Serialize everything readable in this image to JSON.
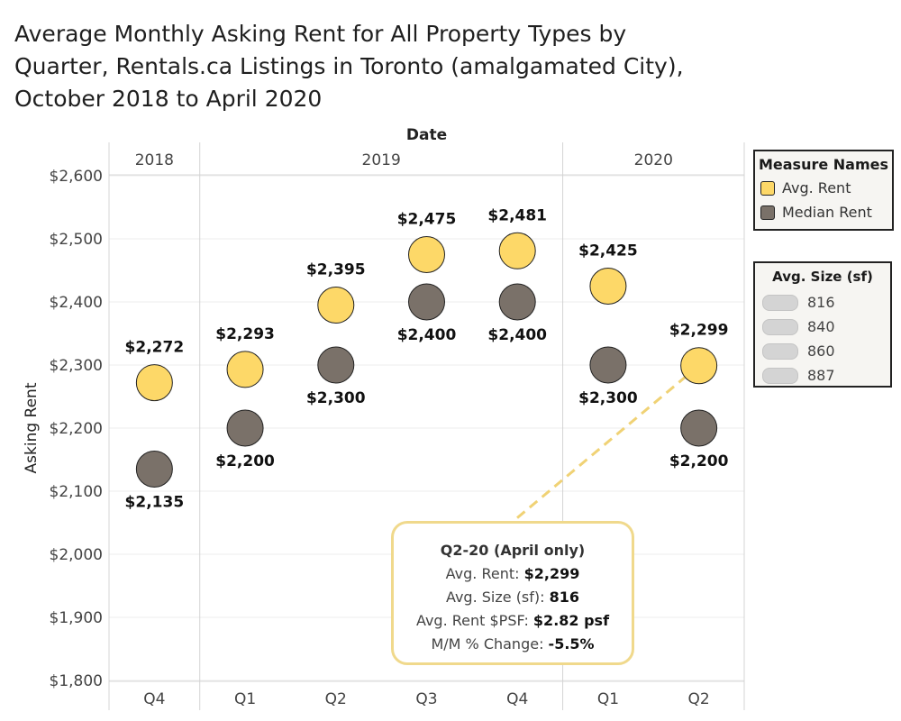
{
  "title_lines": [
    "Average Monthly Asking Rent for All Property Types by",
    "Quarter, Rentals.ca Listings in Toronto (amalgamated City),",
    "October 2018 to April 2020"
  ],
  "colors": {
    "avg": "#fdd868",
    "median": "#7a7169",
    "grid": "#ececec",
    "connector": "#f0d275"
  },
  "chart_data": {
    "type": "scatter",
    "title": "Average Monthly Asking Rent for All Property Types by Quarter, Rentals.ca Listings in Toronto (amalgamated City), October 2018 to April 2020",
    "xlabel": "Date",
    "ylabel": "Asking Rent",
    "ylim": [
      1780,
      2630
    ],
    "y_ticks": [
      1800,
      1900,
      2000,
      2100,
      2200,
      2300,
      2400,
      2500,
      2600
    ],
    "y_tick_labels": [
      "$1,800",
      "$1,900",
      "$2,000",
      "$2,100",
      "$2,200",
      "$2,300",
      "$2,400",
      "$2,500",
      "$2,600"
    ],
    "year_groups": [
      {
        "year": "2018",
        "quarters": [
          "Q4"
        ]
      },
      {
        "year": "2019",
        "quarters": [
          "Q1",
          "Q2",
          "Q3",
          "Q4"
        ]
      },
      {
        "year": "2020",
        "quarters": [
          "Q1",
          "Q2"
        ]
      }
    ],
    "categories": [
      "2018 Q4",
      "2019 Q1",
      "2019 Q2",
      "2019 Q3",
      "2019 Q4",
      "2020 Q1",
      "2020 Q2"
    ],
    "series": [
      {
        "name": "Avg. Rent",
        "values": [
          2272,
          2293,
          2395,
          2475,
          2481,
          2425,
          2299
        ],
        "labels": [
          "$2,272",
          "$2,293",
          "$2,395",
          "$2,475",
          "$2,481",
          "$2,425",
          "$2,299"
        ],
        "label_pos": [
          "above",
          "above",
          "above",
          "above",
          "above",
          "above",
          "above"
        ]
      },
      {
        "name": "Median Rent",
        "values": [
          2135,
          2200,
          2300,
          2400,
          2400,
          2300,
          2200
        ],
        "labels": [
          "$2,135",
          "$2,200",
          "$2,300",
          "$2,400",
          "$2,400",
          "$2,300",
          "$2,200"
        ],
        "label_pos": [
          "below",
          "below",
          "below",
          "below",
          "below",
          "below",
          "below"
        ]
      }
    ],
    "legend": {
      "title": "Measure Names",
      "placement": "right",
      "items": [
        "Avg. Rent",
        "Median Rent"
      ]
    },
    "size_legend": {
      "title": "Avg. Size (sf)",
      "items": [
        "816",
        "840",
        "860",
        "887"
      ]
    },
    "grid": true
  },
  "tooltip": {
    "header": "Q2-20 (April only)",
    "rows": [
      {
        "label": "Avg. Rent: ",
        "value": "$2,299"
      },
      {
        "label": "Avg. Size (sf): ",
        "value": "816"
      },
      {
        "label": "Avg. Rent $PSF: ",
        "value": "$2.82 psf"
      },
      {
        "label": "M/M % Change: ",
        "value": "-5.5%"
      }
    ]
  }
}
